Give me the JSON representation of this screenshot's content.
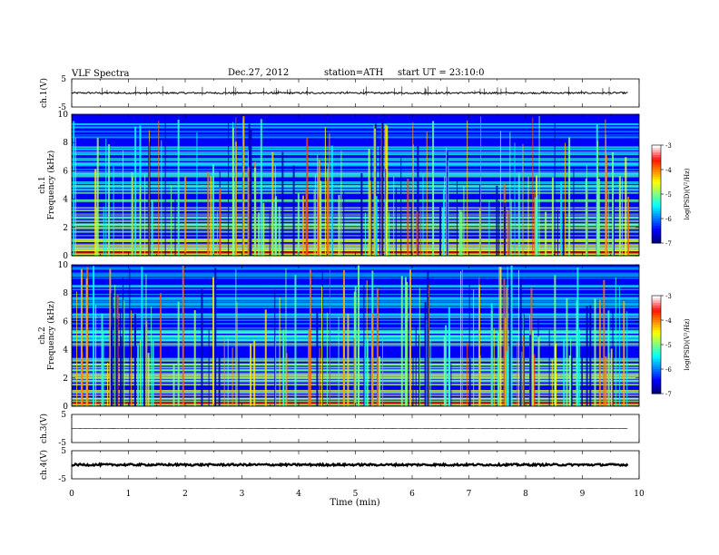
{
  "header": {
    "title": "VLF  Spectra",
    "date": "Dec.27, 2012",
    "station": "station=ATH",
    "start": "start  UT  =   23:10:0"
  },
  "colors": {
    "frame": "#000000",
    "spectrogram_low": "#00007a",
    "spectrogram_mid": "#00c8ff",
    "spectrogram_high": "#ffff00",
    "spectrogram_peak": "#ff0000",
    "colorbar_top": "#ffffff"
  },
  "chart_data": [
    {
      "type": "line",
      "panel": "ch1-waveform",
      "ylabel": "ch.1(V)",
      "ylim": [
        -5,
        5
      ],
      "yticks": [
        "5",
        "-5"
      ],
      "xlim": [
        0,
        10
      ],
      "baseline": 0.0,
      "noise": 0.3,
      "x_end": 9.8
    },
    {
      "type": "heatmap",
      "panel": "ch1-spectrogram",
      "ylabel_top": "ch.1",
      "ylabel": "Frequency  (kHz)",
      "ylim": [
        0,
        10
      ],
      "yticks": [
        "0",
        "2",
        "4",
        "6",
        "8",
        "10"
      ],
      "xlim": [
        0,
        10
      ],
      "colorbar": {
        "label": "log(PSD)(V²/Hz)",
        "range": [
          -7,
          -3
        ],
        "ticks": [
          "-3",
          "-4",
          "-5",
          "-6",
          "-7"
        ]
      }
    },
    {
      "type": "heatmap",
      "panel": "ch2-spectrogram",
      "ylabel_top": "ch.2",
      "ylabel": "Frequency  (kHz)",
      "ylim": [
        0,
        10
      ],
      "yticks": [
        "0",
        "2",
        "4",
        "6",
        "8",
        "10"
      ],
      "xlim": [
        0,
        10
      ],
      "colorbar": {
        "label": "log(PSD)(V²/Hz)",
        "range": [
          -7,
          -3
        ],
        "ticks": [
          "-3",
          "-4",
          "-5",
          "-6",
          "-7"
        ]
      }
    },
    {
      "type": "line",
      "panel": "ch3-waveform",
      "ylabel": "ch.3(V)",
      "ylim": [
        -5,
        5
      ],
      "yticks": [
        "5",
        "-5"
      ],
      "xlim": [
        0,
        10
      ],
      "baseline": 0.0,
      "noise": 0.05,
      "x_end": 9.8
    },
    {
      "type": "line",
      "panel": "ch4-waveform",
      "ylabel": "ch.4(V)",
      "ylim": [
        -5,
        5
      ],
      "yticks": [
        "5",
        "-5"
      ],
      "xlim": [
        0,
        10
      ],
      "baseline": 0.0,
      "noise": 0.35,
      "x_end": 9.8
    }
  ],
  "x_axis": {
    "label": "Time  (min)",
    "range": [
      0,
      10
    ],
    "ticks": [
      "0",
      "1",
      "2",
      "3",
      "4",
      "5",
      "6",
      "7",
      "8",
      "9",
      "10"
    ]
  }
}
